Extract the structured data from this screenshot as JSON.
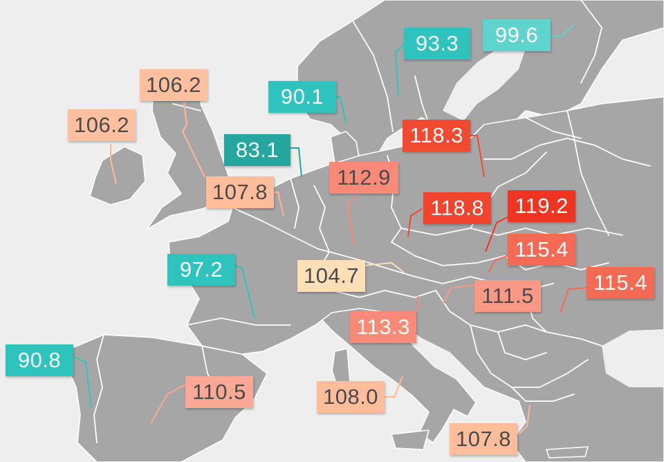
{
  "labels": [
    {
      "id": "finland",
      "value": "99.6",
      "color": "#5fd4cf"
    },
    {
      "id": "sweden",
      "value": "93.3",
      "color": "#2ec4bd"
    },
    {
      "id": "norway",
      "value": "90.1",
      "color": "#2ec4bd"
    },
    {
      "id": "scotland",
      "value": "106.2",
      "color": "#ffc0a0"
    },
    {
      "id": "ireland",
      "value": "106.2",
      "color": "#ffc0a0"
    },
    {
      "id": "netherlands",
      "value": "83.1",
      "color": "#25a79f"
    },
    {
      "id": "baltics",
      "value": "118.3",
      "color": "#f24a30"
    },
    {
      "id": "germany",
      "value": "112.9",
      "color": "#f98a77"
    },
    {
      "id": "belgium",
      "value": "107.8",
      "color": "#ffbd9c"
    },
    {
      "id": "czechia",
      "value": "118.8",
      "color": "#f2432e"
    },
    {
      "id": "poland",
      "value": "119.2",
      "color": "#ef3522"
    },
    {
      "id": "slovakia",
      "value": "115.4",
      "color": "#f56a55"
    },
    {
      "id": "france",
      "value": "97.2",
      "color": "#2ec4bd"
    },
    {
      "id": "switzerland",
      "value": "104.7",
      "color": "#fde0b8"
    },
    {
      "id": "romania",
      "value": "115.4",
      "color": "#f56a55"
    },
    {
      "id": "hungary",
      "value": "111.5",
      "color": "#f99885"
    },
    {
      "id": "slovenia",
      "value": "113.3",
      "color": "#f98a77"
    },
    {
      "id": "portugal",
      "value": "90.8",
      "color": "#2ec4bd"
    },
    {
      "id": "spain",
      "value": "110.5",
      "color": "#fca896"
    },
    {
      "id": "italy",
      "value": "108.0",
      "color": "#ffbd9c"
    },
    {
      "id": "greece",
      "value": "107.8",
      "color": "#ffbd9c"
    }
  ]
}
